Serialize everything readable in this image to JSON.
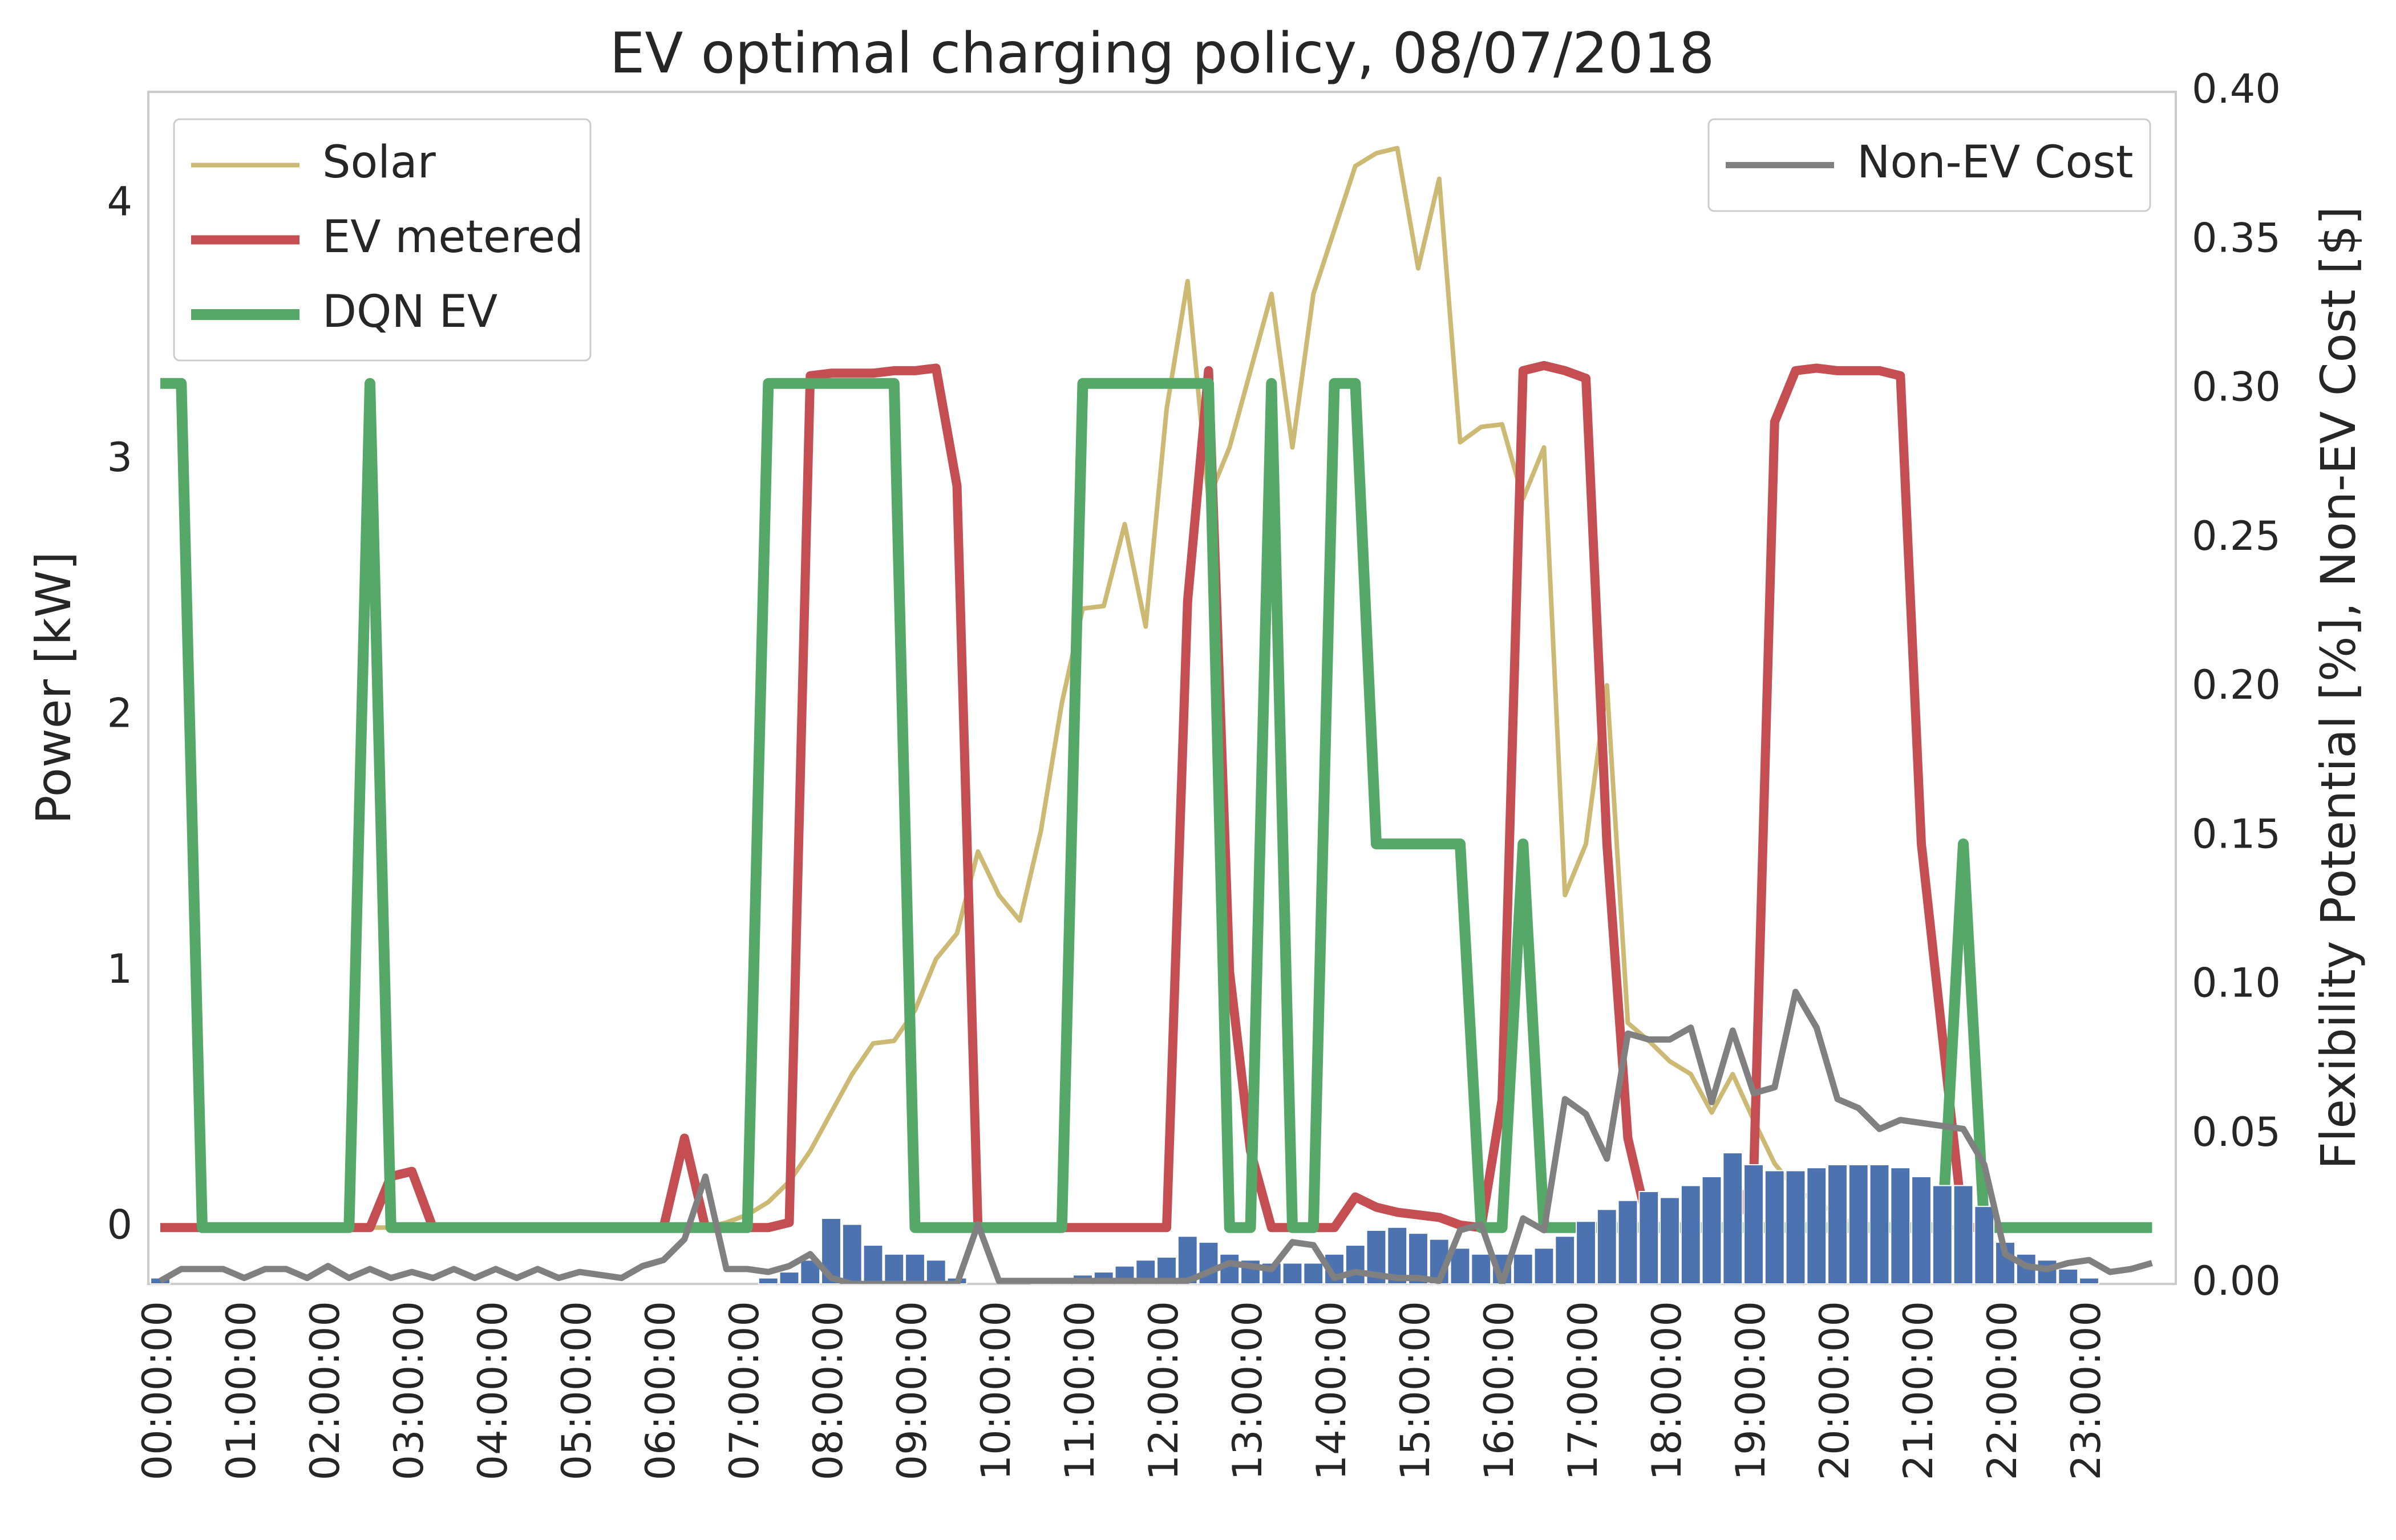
{
  "chart_data": {
    "type": "line",
    "title": "EV optimal charging policy, 08/07/2018",
    "ylabel": "Power [kW]",
    "y2label": "Flexibility Potential [%], Non-EV Cost [$]",
    "categories": [
      "00:00:00",
      null,
      null,
      null,
      "01:00:00",
      null,
      null,
      null,
      "02:00:00",
      null,
      null,
      null,
      "03:00:00",
      null,
      null,
      null,
      "04:00:00",
      null,
      null,
      null,
      "05:00:00",
      null,
      null,
      null,
      "06:00:00",
      null,
      null,
      null,
      "07:00:00",
      null,
      null,
      null,
      "08:00:00",
      null,
      null,
      null,
      "09:00:00",
      null,
      null,
      null,
      "10:00:00",
      null,
      null,
      null,
      "11:00:00",
      null,
      null,
      null,
      "12:00:00",
      null,
      null,
      null,
      "13:00:00",
      null,
      null,
      null,
      "14:00:00",
      null,
      null,
      null,
      "15:00:00",
      null,
      null,
      null,
      "16:00:00",
      null,
      null,
      null,
      "17:00:00",
      null,
      null,
      null,
      "18:00:00",
      null,
      null,
      null,
      "19:00:00",
      null,
      null,
      null,
      "20:00:00",
      null,
      null,
      null,
      "21:00:00",
      null,
      null,
      null,
      "22:00:00",
      null,
      null,
      null,
      "23:00:00",
      null,
      null,
      null
    ],
    "ylim": [
      -0.22,
      4.44
    ],
    "yticks": [
      0,
      1,
      2,
      3,
      4
    ],
    "y2lim": [
      0,
      0.4
    ],
    "y2ticks": [
      {
        "value": 0,
        "label": "0.00"
      },
      {
        "value": 0.05,
        "label": "0.05"
      },
      {
        "value": 0.1,
        "label": "0.10"
      },
      {
        "value": 0.15,
        "label": "0.15"
      },
      {
        "value": 0.2,
        "label": "0.20"
      },
      {
        "value": 0.25,
        "label": "0.25"
      },
      {
        "value": 0.3,
        "label": "0.30"
      },
      {
        "value": 0.35,
        "label": "0.35"
      },
      {
        "value": 0.4,
        "label": "0.40"
      }
    ],
    "grid": false,
    "legend_loc": "upper left",
    "legend2_loc": "upper right",
    "series": [
      {
        "name": "Solar",
        "color": "#ccb974",
        "values": [
          0,
          0,
          0,
          0,
          0,
          0,
          0,
          0,
          0,
          0,
          0,
          0,
          0,
          0,
          0,
          0,
          0,
          0,
          0,
          0,
          0,
          0,
          0,
          0,
          0,
          0,
          0,
          0.02,
          0.05,
          0.1,
          0.18,
          0.3,
          0.45,
          0.6,
          0.72,
          0.73,
          0.85,
          1.05,
          1.15,
          1.47,
          1.3,
          1.2,
          1.55,
          2.05,
          2.42,
          2.43,
          2.75,
          2.35,
          3.2,
          3.7,
          2.85,
          3.05,
          3.35,
          3.65,
          3.05,
          3.65,
          3.9,
          4.15,
          4.2,
          4.22,
          3.75,
          4.1,
          3.07,
          3.13,
          3.14,
          2.85,
          3.05,
          1.3,
          1.5,
          2.12,
          0.8,
          0.73,
          0.65,
          0.6,
          0.45,
          0.6,
          0.42,
          0.25,
          0.15,
          0.1,
          0.05,
          0,
          0,
          0,
          0,
          0,
          0,
          0,
          0,
          0,
          0,
          0,
          0,
          0,
          0,
          0
        ]
      },
      {
        "name": "EV metered",
        "color": "#c44e52",
        "values": [
          0,
          0,
          0,
          0,
          0,
          0,
          0,
          0,
          0,
          0,
          0,
          0.2,
          0.22,
          0,
          0,
          0,
          0,
          0,
          0,
          0,
          0,
          0,
          0,
          0,
          0,
          0.35,
          0,
          0,
          0,
          0,
          0.02,
          3.33,
          3.34,
          3.34,
          3.34,
          3.35,
          3.35,
          3.36,
          2.9,
          0,
          0,
          0,
          0,
          0,
          0,
          0,
          0,
          0,
          0,
          2.45,
          3.35,
          1.0,
          0.3,
          0,
          0,
          0,
          0,
          0.12,
          0.08,
          0.06,
          0.05,
          0.04,
          0.01,
          0,
          0.5,
          3.35,
          3.37,
          3.35,
          3.32,
          1.5,
          0.35,
          0,
          0,
          0,
          0,
          0,
          0.2,
          3.15,
          3.35,
          3.36,
          3.35,
          3.35,
          3.35,
          3.33,
          1.5,
          0.75,
          0,
          0,
          0,
          0,
          0,
          0,
          0,
          0,
          0,
          0
        ]
      },
      {
        "name": "DQN EV",
        "color": "#55a868",
        "values": [
          3.3,
          3.3,
          0,
          0,
          0,
          0,
          0,
          0,
          0,
          0,
          3.3,
          0,
          0,
          0,
          0,
          0,
          0,
          0,
          0,
          0,
          0,
          0,
          0,
          0,
          0,
          0,
          0,
          0,
          0,
          3.3,
          3.3,
          3.3,
          3.3,
          3.3,
          3.3,
          3.3,
          0,
          0,
          0,
          0,
          0,
          0,
          0,
          0,
          3.3,
          3.3,
          3.3,
          3.3,
          3.3,
          3.3,
          3.3,
          0,
          0,
          3.3,
          0,
          0,
          3.3,
          3.3,
          1.5,
          1.5,
          1.5,
          1.5,
          1.5,
          0,
          0,
          1.5,
          0,
          0,
          0,
          0,
          0,
          0,
          0,
          0,
          0,
          0,
          0,
          0,
          0,
          0,
          0,
          0,
          0,
          0,
          0,
          0,
          1.5,
          0,
          0,
          0,
          0,
          0,
          0,
          0,
          0,
          0
        ]
      },
      {
        "name": "Non-EV Cost",
        "color": "#808080",
        "axis": "y2",
        "values": [
          0.001,
          0.005,
          0.005,
          0.005,
          0.002,
          0.005,
          0.005,
          0.002,
          0.006,
          0.002,
          0.005,
          0.002,
          0.004,
          0.002,
          0.005,
          0.002,
          0.005,
          0.002,
          0.005,
          0.002,
          0.004,
          0.003,
          0.002,
          0.006,
          0.008,
          0.015,
          0.036,
          0.005,
          0.005,
          0.004,
          0.006,
          0.01,
          0.002,
          0,
          0,
          0,
          0,
          0,
          0,
          0.02,
          0.001,
          0.001,
          0.001,
          0.001,
          0.001,
          0.001,
          0.001,
          0.001,
          0.001,
          0.001,
          0.004,
          0.007,
          0.006,
          0.005,
          0.014,
          0.013,
          0.002,
          0.004,
          0.003,
          0.002,
          0.002,
          0.001,
          0.018,
          0.02,
          0,
          0.022,
          0.018,
          0.062,
          0.057,
          0.042,
          0.084,
          0.082,
          0.082,
          0.086,
          0.061,
          0.085,
          0.064,
          0.066,
          0.098,
          0.086,
          0.062,
          0.059,
          0.052,
          0.055,
          0.054,
          0.053,
          0.052,
          0.04,
          0.01,
          0.006,
          0.005,
          0.007,
          0.008,
          0.004,
          0.005,
          0.007
        ]
      },
      {
        "type": "bar",
        "color": "#4c72b0",
        "axis": "y2",
        "values": [
          0.002,
          0,
          0,
          0,
          0,
          0,
          0,
          0,
          0,
          0,
          0,
          0,
          0,
          0,
          0,
          0,
          0,
          0,
          0,
          0,
          0,
          0,
          0,
          0,
          0,
          0,
          0,
          0,
          0,
          0.002,
          0.004,
          0.008,
          0.022,
          0.02,
          0.013,
          0.01,
          0.01,
          0.008,
          0.002,
          0,
          0,
          0,
          0.001,
          0.002,
          0.003,
          0.004,
          0.006,
          0.008,
          0.009,
          0.016,
          0.014,
          0.01,
          0.008,
          0.007,
          0.007,
          0.007,
          0.01,
          0.013,
          0.018,
          0.019,
          0.017,
          0.015,
          0.012,
          0.01,
          0.01,
          0.01,
          0.012,
          0.016,
          0.021,
          0.025,
          0.028,
          0.031,
          0.029,
          0.033,
          0.036,
          0.044,
          0.04,
          0.038,
          0.038,
          0.039,
          0.04,
          0.04,
          0.04,
          0.039,
          0.036,
          0.033,
          0.033,
          0.026,
          0.014,
          0.01,
          0.008,
          0.005,
          0.002,
          0,
          0,
          0
        ]
      }
    ]
  }
}
